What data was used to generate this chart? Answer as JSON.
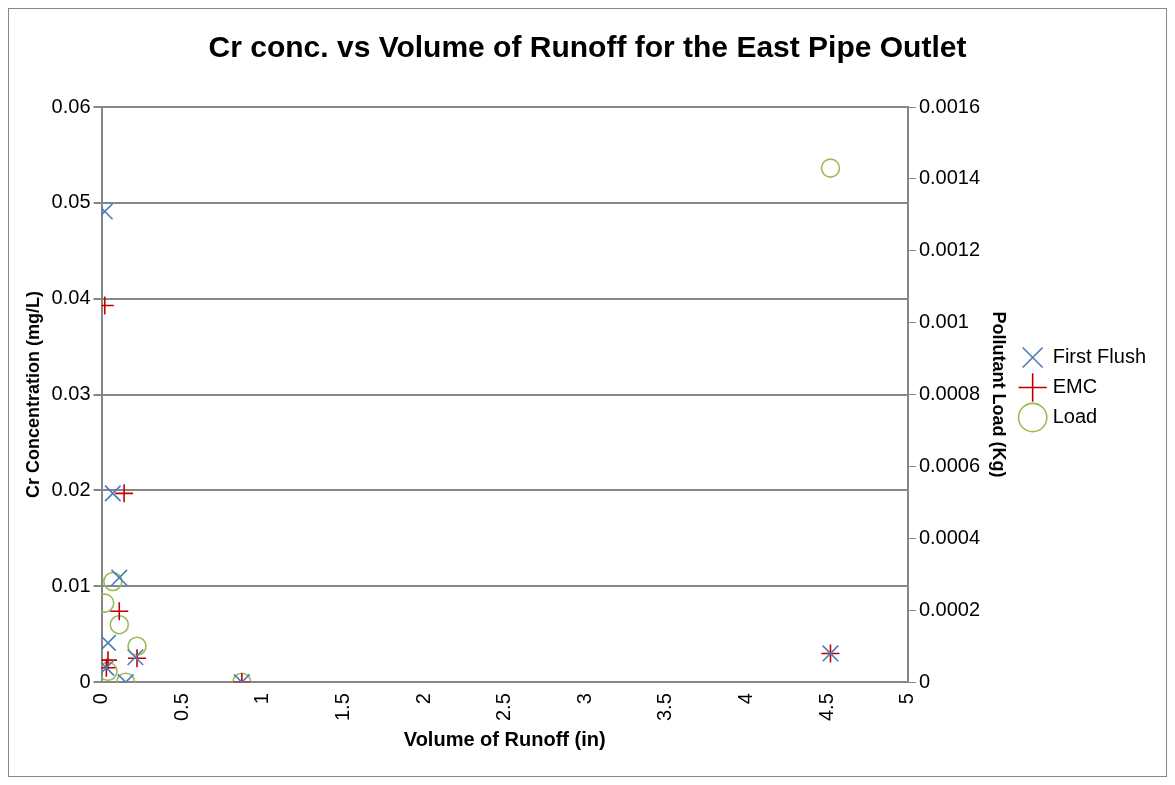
{
  "chart_data": {
    "type": "scatter",
    "title": "Cr conc. vs Volume of Runoff for the East Pipe Outlet",
    "xlabel": "Volume of Runoff (in)",
    "ylabel": "Cr Concentration (mg/L)",
    "y2label": "Pollutant Load (Kg)",
    "xlim": [
      0,
      5
    ],
    "xticks": [
      0,
      0.5,
      1,
      1.5,
      2,
      2.5,
      3,
      3.5,
      4,
      4.5,
      5
    ],
    "ylim": [
      0,
      0.06
    ],
    "yticks": [
      0,
      0.01,
      0.02,
      0.03,
      0.04,
      0.05,
      0.06
    ],
    "y2lim": [
      0,
      0.0016
    ],
    "y2ticks": [
      0,
      0.0002,
      0.0004,
      0.0006,
      0.0008,
      0.001,
      0.0012,
      0.0014,
      0.0016
    ],
    "grid": "y",
    "legend": "right",
    "series": [
      {
        "name": "First Flush",
        "color": "#4a7ebb",
        "marker": "x",
        "x": [
          0.02,
          0.07,
          0.11,
          0.04,
          0.21,
          0.15,
          0.03,
          0.87,
          4.52
        ],
        "values": [
          0.0491,
          0.0197,
          0.0109,
          0.0041,
          0.0026,
          0,
          0.0015,
          0,
          0.003
        ]
      },
      {
        "name": "EMC",
        "color": "#c00000",
        "marker": "cross",
        "x": [
          0.02,
          0.14,
          0.11,
          0.04,
          0.22,
          0.03,
          0.87,
          4.52
        ],
        "values": [
          0.0393,
          0.0197,
          0.0074,
          0.0023,
          0.0025,
          0.0015,
          0,
          0.003
        ]
      },
      {
        "name": "Load",
        "color": "#9bbb59",
        "marker": "circle",
        "axis": "y2",
        "x": [
          0.07,
          0.02,
          0.11,
          0.22,
          0.04,
          0.15,
          0.87,
          4.52
        ],
        "values": [
          0.00028,
          0.00022,
          0.00016,
          0.0001,
          3e-05,
          0,
          0,
          0.00143
        ]
      }
    ]
  }
}
